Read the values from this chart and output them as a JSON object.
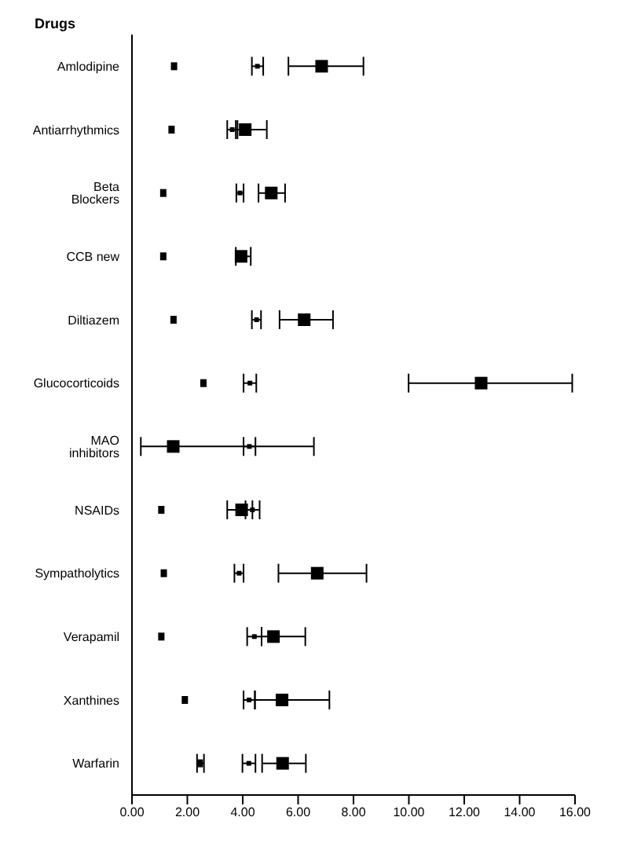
{
  "chart_data": {
    "type": "scatter",
    "orientation": "horizontal",
    "ylabel": "Drugs",
    "categories": [
      "Amlodipine",
      "Antiarrhythmics",
      "Beta Blockers",
      "CCB new",
      "Diltiazem",
      "Glucocorticoids",
      "MAO inhibitors",
      "NSAIDs",
      "Sympatholytics",
      "Verapamil",
      "Xanthines",
      "Warfarin"
    ],
    "series": [
      {
        "color": "#000000",
        "marker": "square",
        "values": [
          1.52,
          1.43,
          1.13,
          1.13,
          1.5,
          2.58,
          null,
          1.06,
          1.15,
          1.06,
          1.91,
          2.45
        ],
        "errors": [
          null,
          null,
          null,
          null,
          null,
          null,
          null,
          null,
          null,
          null,
          null,
          [
            2.35,
            2.6
          ]
        ]
      },
      {
        "color": "#000000",
        "marker": "square",
        "values": [
          4.53,
          3.62,
          3.9,
          null,
          4.5,
          4.26,
          4.24,
          4.35,
          3.87,
          4.42,
          4.23,
          4.22
        ],
        "errors": [
          [
            4.33,
            4.74
          ],
          [
            3.44,
            3.81
          ],
          [
            3.77,
            4.03
          ],
          null,
          [
            4.33,
            4.66
          ],
          [
            4.03,
            4.49
          ],
          [
            4.03,
            4.46
          ],
          [
            4.1,
            4.61
          ],
          [
            3.7,
            4.03
          ],
          [
            4.16,
            4.68
          ],
          [
            4.03,
            4.44
          ],
          [
            3.99,
            4.46
          ]
        ]
      },
      {
        "color": "#000000",
        "marker": "square",
        "values": [
          6.85,
          4.09,
          5.03,
          3.94,
          6.22,
          12.61,
          1.49,
          3.96,
          6.69,
          5.11,
          5.42,
          5.44
        ],
        "errors": [
          [
            5.65,
            8.36
          ],
          [
            3.75,
            4.87
          ],
          [
            4.57,
            5.53
          ],
          [
            3.75,
            4.29
          ],
          [
            5.33,
            7.26
          ],
          [
            9.99,
            15.9
          ],
          [
            0.32,
            6.57
          ],
          [
            3.44,
            4.35
          ],
          [
            5.29,
            8.47
          ],
          [
            4.68,
            6.26
          ],
          [
            4.44,
            7.13
          ],
          [
            4.7,
            6.28
          ]
        ]
      }
    ],
    "xlim": [
      0,
      16
    ],
    "xticks": [
      {
        "value": 0,
        "label": "0.00"
      },
      {
        "value": 2,
        "label": "2.00"
      },
      {
        "value": 4,
        "label": "4.00"
      },
      {
        "value": 6,
        "label": "6.00"
      },
      {
        "value": 8,
        "label": "8.00"
      },
      {
        "value": 10,
        "label": "10.00"
      },
      {
        "value": 12,
        "label": "12.00"
      },
      {
        "value": 14,
        "label": "14.00"
      },
      {
        "value": 16,
        "label": "16.00"
      }
    ],
    "grid": false,
    "legend": false
  }
}
